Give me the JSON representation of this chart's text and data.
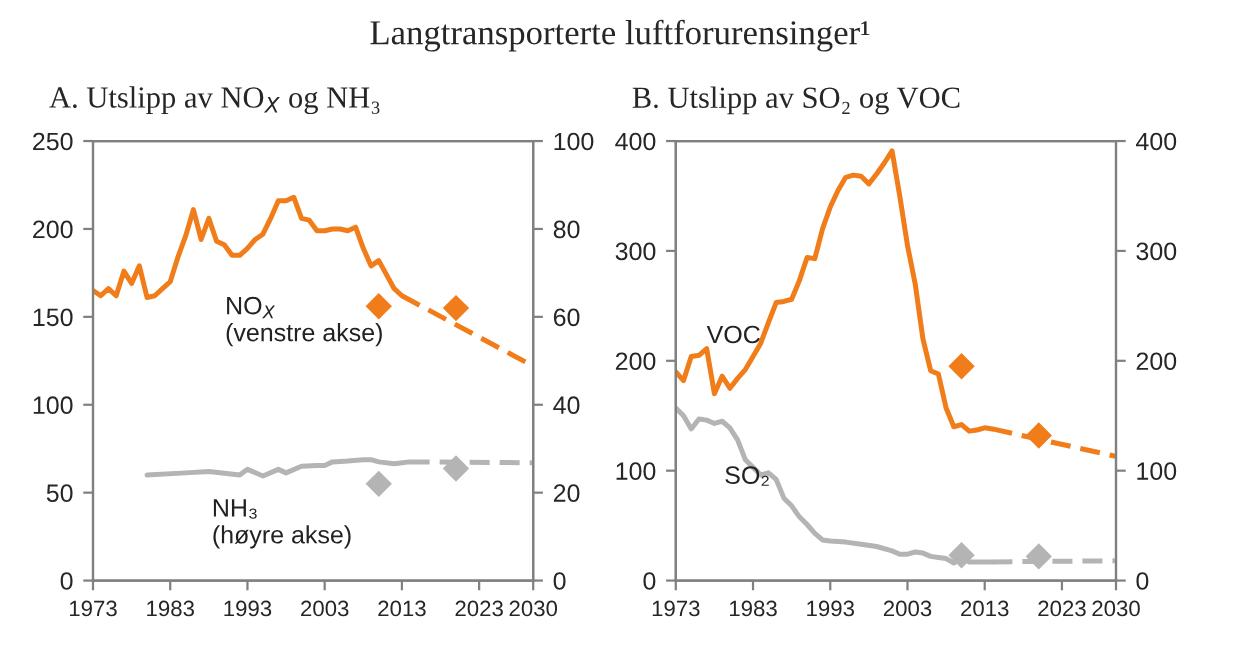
{
  "chart_data": [
    {
      "type": "line",
      "title": "Langtransporterte luftforurensinger¹",
      "subtitle": "A. Utslipp av NO$_{X}$ og NH₃",
      "xlim": [
        1973,
        2030
      ],
      "xticks": [
        1973,
        1983,
        1993,
        2003,
        2013,
        2023,
        2030
      ],
      "ylim": [
        0,
        250
      ],
      "yticks": [
        0,
        50,
        100,
        150,
        200,
        250
      ],
      "y2lim": [
        0,
        100
      ],
      "y2ticks": [
        0,
        20,
        40,
        60,
        80,
        100
      ],
      "grid": false,
      "legend": false,
      "series": [
        {
          "type": "line",
          "name": "NO$_{X}$\n(venstre akse)",
          "color": "#f07d1a",
          "line_style": "solid",
          "x": [
            1973,
            1974,
            1975,
            1976,
            1977,
            1978,
            1979,
            1980,
            1981,
            1982,
            1983,
            1984,
            1985,
            1986,
            1987,
            1988,
            1989,
            1990,
            1991,
            1992,
            1993,
            1994,
            1995,
            1996,
            1997,
            1998,
            1999,
            2000,
            2001,
            2002,
            2003,
            2004,
            2005,
            2006,
            2007,
            2008,
            2009,
            2010,
            2011,
            2012,
            2013
          ],
          "values": [
            165,
            162,
            166,
            162,
            176,
            169,
            179,
            161,
            162,
            166,
            170,
            184,
            196,
            211,
            194,
            206,
            193,
            191,
            185,
            185,
            189,
            194,
            197,
            206,
            216,
            216,
            218,
            206,
            205,
            199,
            199,
            200,
            200,
            199,
            201,
            189,
            179,
            182,
            174,
            166,
            162
          ]
        },
        {
          "type": "line",
          "color": "#f07d1a",
          "line_style": "dashed",
          "x": [
            2013,
            2030
          ],
          "values": [
            162,
            122
          ]
        },
        {
          "type": "scatter",
          "color": "#f07d1a",
          "marker": "diamond",
          "x": [
            2010,
            2020
          ],
          "values": [
            156,
            155
          ]
        },
        {
          "type": "line",
          "name": "NH₃\n(høyre akse)",
          "color": "#b4b4b4",
          "line_style": "solid",
          "axis": "y2",
          "x": [
            1980,
            1985,
            1988,
            1992,
            1993,
            1995,
            1997,
            1998,
            2000,
            2002,
            2003,
            2004,
            2006,
            2008,
            2009,
            2010,
            2012,
            2014
          ],
          "values": [
            24,
            24.5,
            24.8,
            24,
            25.3,
            23.8,
            25.3,
            24.5,
            26,
            26.2,
            26.2,
            27,
            27.2,
            27.5,
            27.5,
            27,
            26.6,
            27
          ]
        },
        {
          "type": "line",
          "color": "#b4b4b4",
          "line_style": "dashed",
          "axis": "y2",
          "x": [
            2014,
            2030
          ],
          "values": [
            27,
            26.8
          ]
        },
        {
          "type": "scatter",
          "color": "#b4b4b4",
          "marker": "diamond",
          "axis": "y2",
          "x": [
            2010,
            2020
          ],
          "values": [
            22,
            25.5
          ]
        }
      ]
    },
    {
      "type": "line",
      "subtitle": "B. Utslipp av SO₂ og VOC",
      "xlim": [
        1973,
        2030
      ],
      "xticks": [
        1973,
        1983,
        1993,
        2003,
        2013,
        2023,
        2030
      ],
      "ylim": [
        0,
        400
      ],
      "yticks": [
        0,
        100,
        200,
        300,
        400
      ],
      "y2lim": [
        0,
        400
      ],
      "y2ticks": [
        0,
        100,
        200,
        300,
        400
      ],
      "grid": false,
      "legend": false,
      "series": [
        {
          "type": "line",
          "name": "VOC",
          "color": "#f07d1a",
          "line_style": "solid",
          "x": [
            1973,
            1974,
            1975,
            1976,
            1977,
            1978,
            1979,
            1980,
            1981,
            1982,
            1983,
            1984,
            1985,
            1986,
            1987,
            1988,
            1989,
            1990,
            1991,
            1992,
            1993,
            1994,
            1995,
            1996,
            1997,
            1998,
            1999,
            2000,
            2001,
            2002,
            2003,
            2004,
            2005,
            2006,
            2007,
            2008,
            2009,
            2010,
            2011,
            2012,
            2013,
            2014
          ],
          "values": [
            190,
            182,
            204,
            205,
            211,
            170,
            186,
            175,
            184,
            192,
            204,
            216,
            235,
            253,
            254,
            256,
            273,
            294,
            293,
            320,
            340,
            355,
            367,
            369,
            368,
            361,
            370,
            380,
            391,
            350,
            305,
            270,
            220,
            191,
            188,
            157,
            140,
            142,
            136,
            137,
            139,
            138
          ]
        },
        {
          "type": "line",
          "color": "#f07d1a",
          "line_style": "dashed",
          "x": [
            2014,
            2030
          ],
          "values": [
            138,
            113
          ]
        },
        {
          "type": "scatter",
          "color": "#f07d1a",
          "marker": "diamond",
          "x": [
            2010,
            2020
          ],
          "values": [
            195,
            132
          ]
        },
        {
          "type": "line",
          "name": "SO₂",
          "color": "#b4b4b4",
          "line_style": "solid",
          "x": [
            1973,
            1974,
            1975,
            1976,
            1977,
            1978,
            1979,
            1980,
            1981,
            1982,
            1983,
            1984,
            1985,
            1986,
            1987,
            1988,
            1989,
            1990,
            1991,
            1992,
            1993,
            1995,
            1997,
            1999,
            2001,
            2002,
            2003,
            2004,
            2005,
            2006,
            2007,
            2008,
            2009,
            2010,
            2011,
            2012,
            2013,
            2014
          ],
          "values": [
            157,
            150,
            138,
            147,
            146,
            143,
            145,
            139,
            128,
            110,
            103,
            96,
            98,
            92,
            75,
            68,
            58,
            51,
            43,
            37,
            36,
            35,
            33,
            31,
            27,
            24,
            24,
            26,
            25,
            22,
            21,
            20,
            16,
            20,
            17,
            17,
            17,
            17
          ]
        },
        {
          "type": "line",
          "color": "#b4b4b4",
          "line_style": "dashed",
          "x": [
            2014,
            2030
          ],
          "values": [
            17,
            18
          ]
        },
        {
          "type": "scatter",
          "color": "#b4b4b4",
          "marker": "diamond",
          "x": [
            2010,
            2020
          ],
          "values": [
            23,
            22
          ]
        }
      ]
    }
  ]
}
